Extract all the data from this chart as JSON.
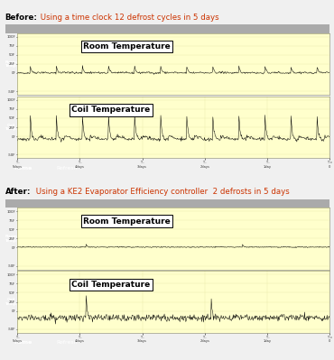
{
  "before_bold": "Before:",
  "before_normal": " Using a time clock 12 defrost cycles in 5 days",
  "after_bold": "After:",
  "after_normal": " Using a KE2 Evaporator Efficiency controller  2 defrosts in 5 days",
  "chart_bg": "#ffffcc",
  "outer_bg": "#999988",
  "top_bar_color": "#bbbbaa",
  "bottom_bar_color": "#44bb44",
  "home_btn_color": "#1a1a1a",
  "refresh_btn_color": "#cc55cc",
  "room_label_color": "#44aa44",
  "coil_label_color": "#5599cc",
  "grid_color": "#dddd99",
  "line_color": "#000000",
  "x_tick_labels": [
    "T -\n5days",
    "T -\n4days",
    "T -\n3days",
    "T -\n2days",
    "T -\n1day",
    "T =\n0"
  ],
  "seed": 42
}
